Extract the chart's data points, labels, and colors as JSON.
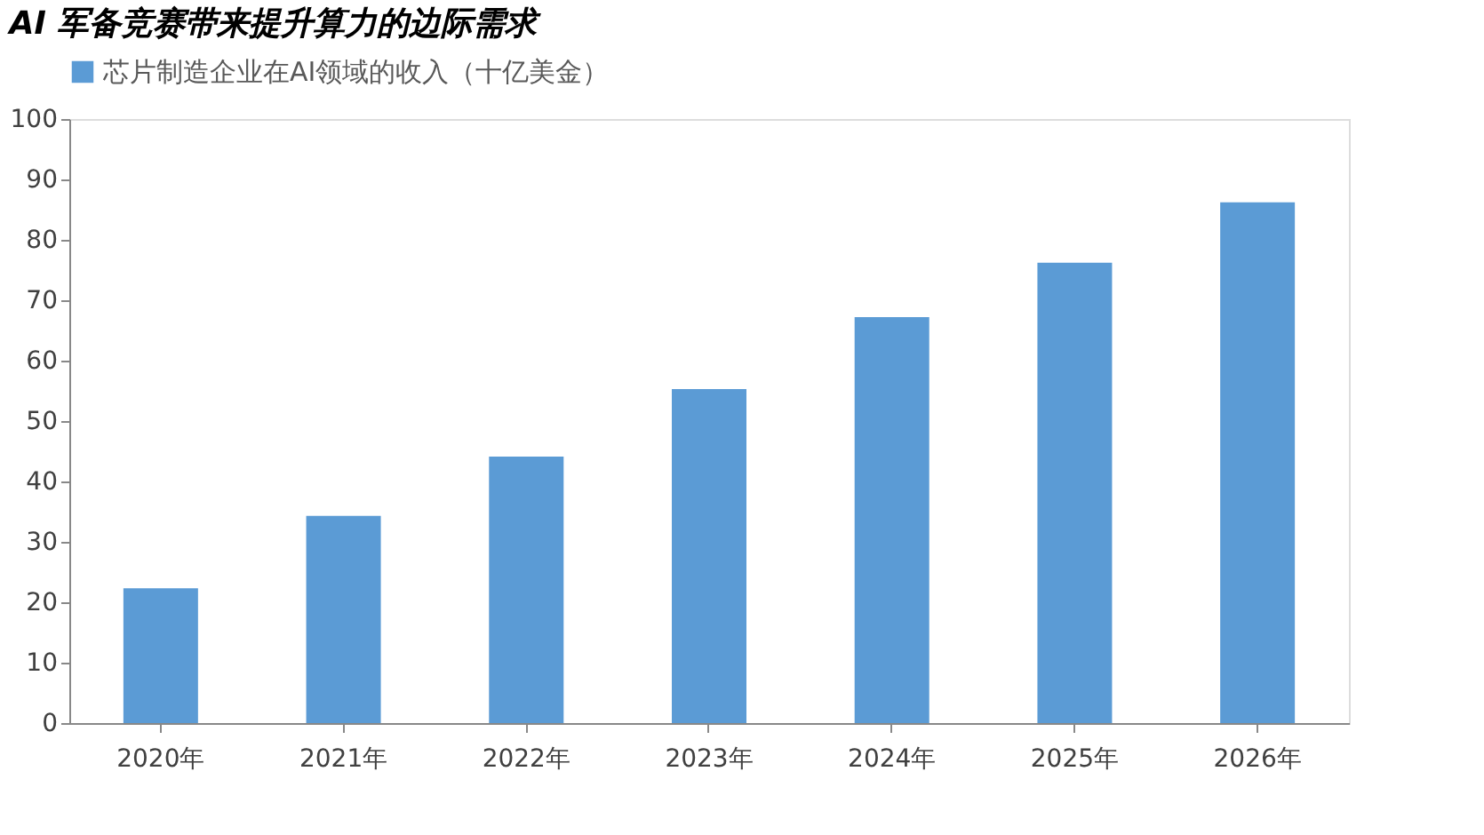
{
  "chart_data": {
    "type": "bar",
    "title": "AI 军备竞赛带来提升算力的边际需求",
    "categories": [
      "2020年",
      "2021年",
      "2022年",
      "2023年",
      "2024年",
      "2025年",
      "2026年"
    ],
    "series": [
      {
        "name": "芯片制造企业在AI领域的收入（十亿美金）",
        "color": "#5b9bd5",
        "values": [
          22.3,
          34.3,
          44.1,
          55.3,
          67.2,
          76.2,
          86.2
        ]
      }
    ],
    "ylim": [
      0,
      100
    ],
    "yticks": [
      0,
      10,
      20,
      30,
      40,
      50,
      60,
      70,
      80,
      90,
      100
    ],
    "grid": false,
    "legend": "top"
  }
}
